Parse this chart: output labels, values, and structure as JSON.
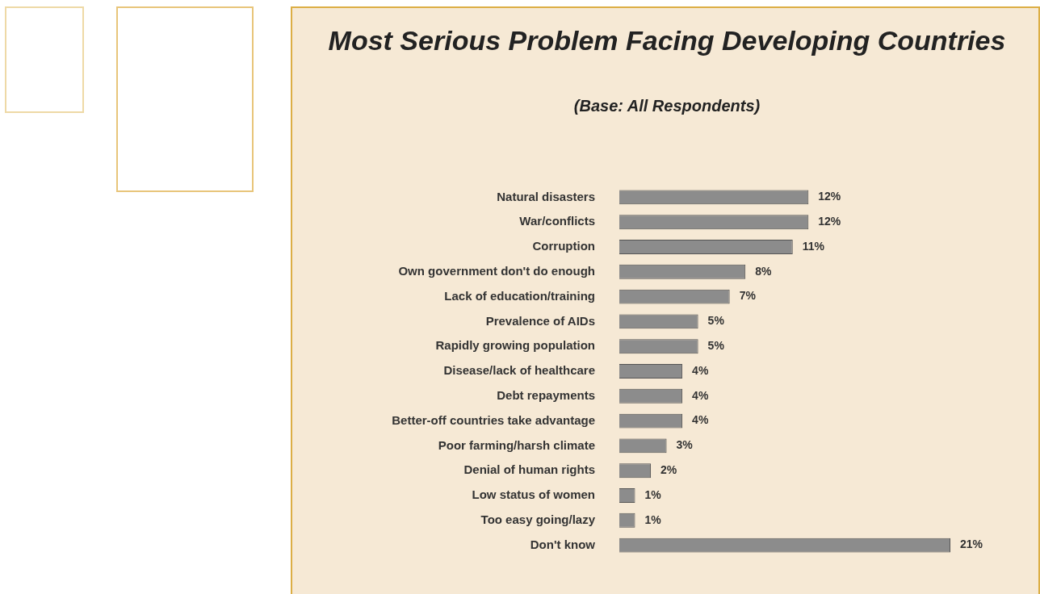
{
  "chart_data": {
    "type": "bar",
    "orientation": "horizontal",
    "title": "Most Serious Problem Facing Developing Countries",
    "subtitle": "(Base: All Respondents)",
    "categories": [
      "Natural disasters",
      "War/conflicts",
      "Corruption",
      "Own government don't do enough",
      "Lack of education/training",
      "Prevalence of AIDs",
      "Rapidly growing population",
      "Disease/lack of healthcare",
      "Debt repayments",
      "Better-off countries take advantage",
      "Poor farming/harsh climate",
      "Denial of human rights",
      "Low status of women",
      "Too easy going/lazy",
      "Don't know"
    ],
    "values": [
      12,
      12,
      11,
      8,
      7,
      5,
      5,
      4,
      4,
      4,
      3,
      2,
      1,
      1,
      21
    ],
    "value_labels": [
      "12%",
      "12%",
      "11%",
      "8%",
      "7%",
      "5%",
      "5%",
      "4%",
      "4%",
      "4%",
      "3%",
      "2%",
      "1%",
      "1%",
      "21%"
    ],
    "color": "#8c8c8c",
    "grid": false,
    "legend": false
  }
}
